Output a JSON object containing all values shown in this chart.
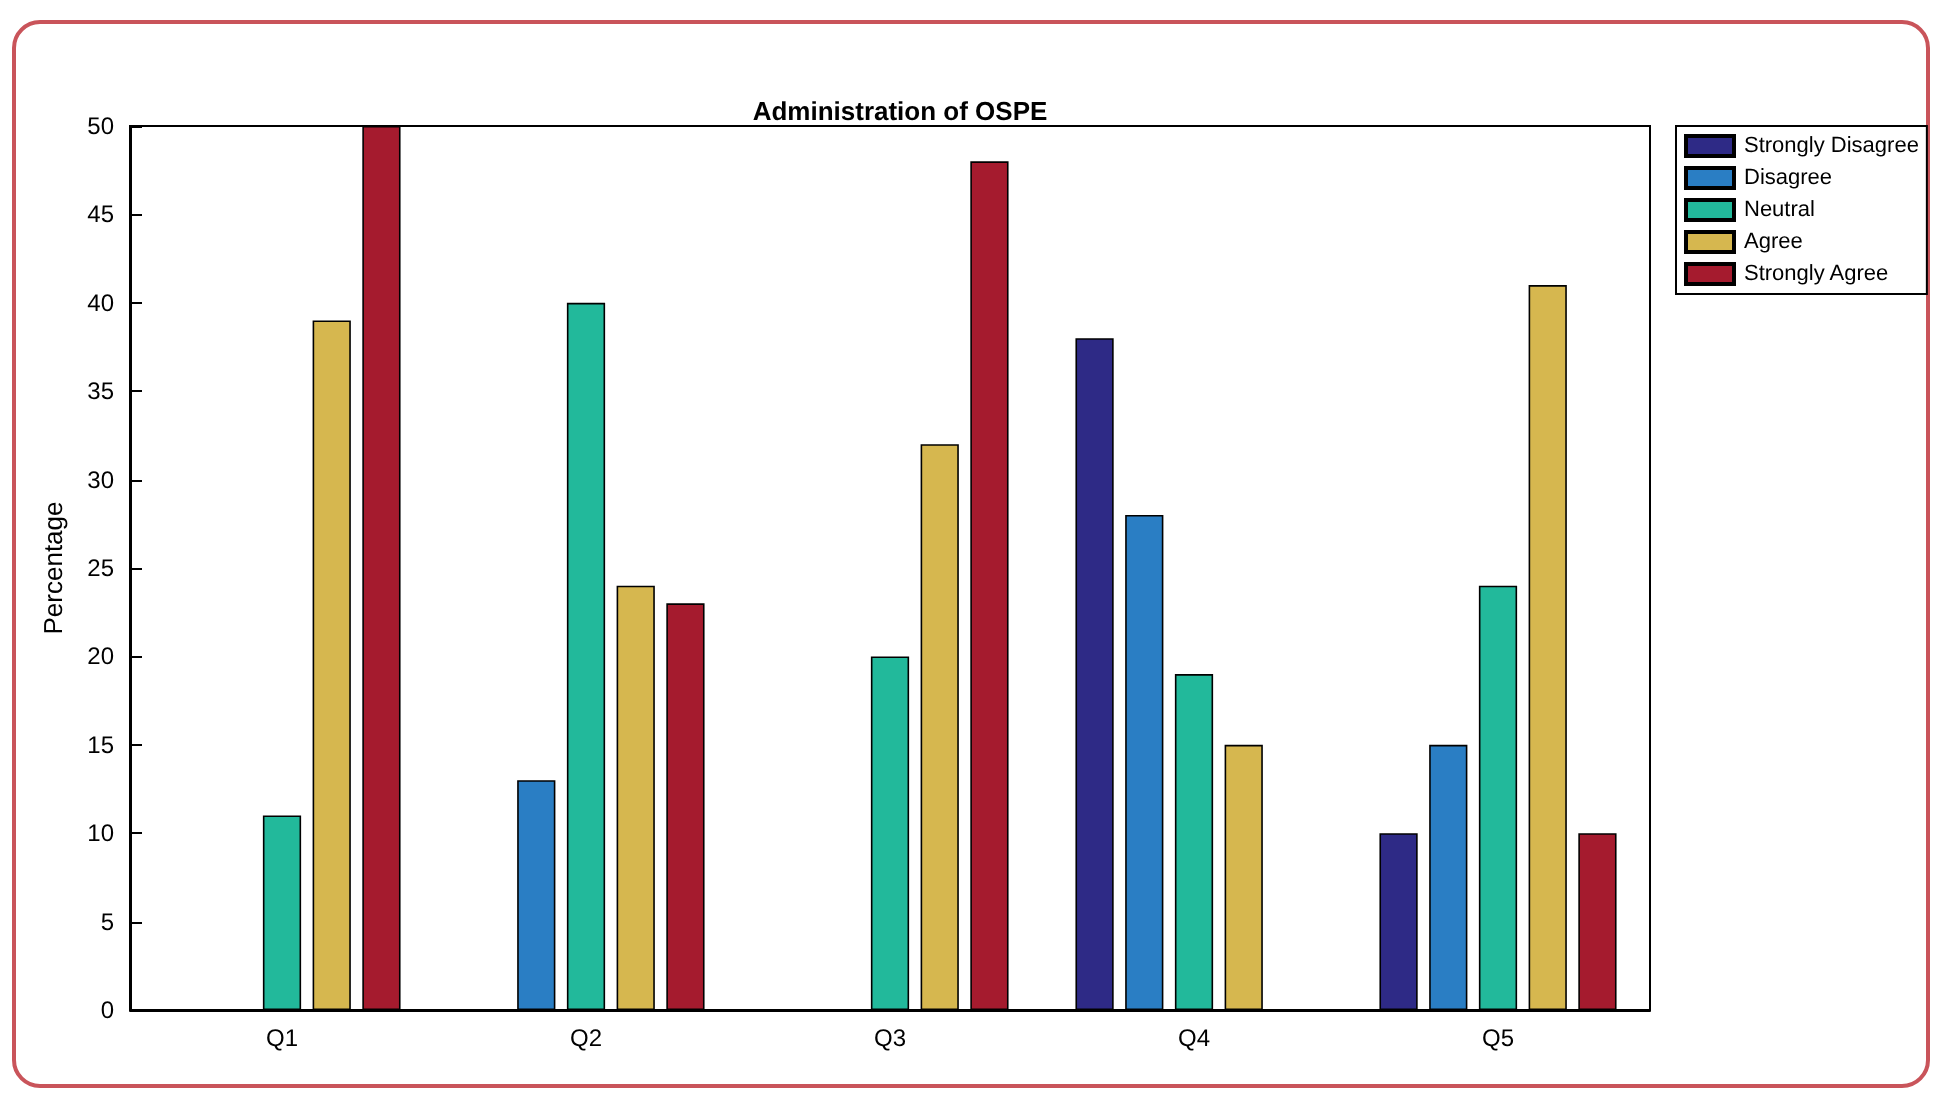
{
  "chart_data": {
    "type": "bar",
    "title": "Administration of OSPE",
    "ylabel": "Percentage",
    "categories": [
      "Q1",
      "Q2",
      "Q3",
      "Q4",
      "Q5"
    ],
    "series": [
      {
        "name": "Strongly Disagree",
        "color": "#2e2a86",
        "values": [
          0,
          0,
          0,
          38,
          10
        ]
      },
      {
        "name": "Disagree",
        "color": "#2a7ec4",
        "values": [
          0,
          13,
          0,
          28,
          15
        ]
      },
      {
        "name": "Neutral",
        "color": "#22b99b",
        "values": [
          11,
          40,
          20,
          19,
          24
        ]
      },
      {
        "name": "Agree",
        "color": "#d6b74f",
        "values": [
          39,
          24,
          32,
          15,
          41
        ]
      },
      {
        "name": "Strongly Agree",
        "color": "#a51b2e",
        "values": [
          50,
          23,
          48,
          0,
          10
        ]
      }
    ],
    "ylim": [
      0,
      50
    ],
    "yticks": [
      0,
      5,
      10,
      15,
      20,
      25,
      30,
      35,
      40,
      45,
      50
    ],
    "grid": false,
    "legend": "top right"
  }
}
